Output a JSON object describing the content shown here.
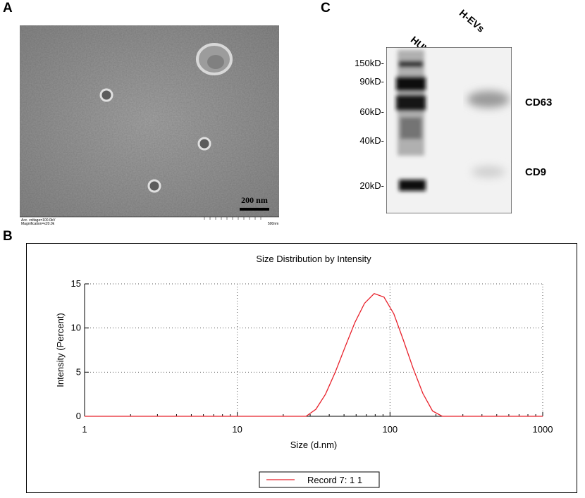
{
  "panels": {
    "a": "A",
    "b": "B",
    "c": "C"
  },
  "tem": {
    "scale_bar_label": "200 nm",
    "footer_line1": "Acc. voltage=100.0kV",
    "footer_line2": "Magnification=x20.0k",
    "footer_right": "500nm"
  },
  "western_blot": {
    "lanes": [
      "HUVECs",
      "H-EVs"
    ],
    "markers": [
      "150kD-",
      "90kD-",
      "60kD-",
      "40kD-",
      "20kD-"
    ],
    "proteins": [
      "CD63",
      "CD9"
    ]
  },
  "chart_data": {
    "type": "line",
    "title": "Size Distribution by Intensity",
    "xlabel": "Size (d.nm)",
    "ylabel": "Intensity (Percent)",
    "xscale": "log",
    "xlim": [
      1,
      1000
    ],
    "ylim": [
      0,
      15
    ],
    "xticks": [
      "1",
      "10",
      "100",
      "1000"
    ],
    "yticks": [
      "0",
      "5",
      "10",
      "15"
    ],
    "grid": true,
    "legend_position": "bottom-center",
    "series": [
      {
        "name": "Record 7: 1 1",
        "color": "#e8202a",
        "x": [
          1,
          28.2,
          32.7,
          37.8,
          43.8,
          50.7,
          58.8,
          68.1,
          78.8,
          91.3,
          106,
          122,
          142,
          164,
          190,
          220,
          1000
        ],
        "y": [
          0,
          0,
          0.8,
          2.5,
          5.0,
          7.8,
          10.6,
          12.8,
          13.9,
          13.5,
          11.6,
          8.7,
          5.4,
          2.6,
          0.6,
          0,
          0
        ]
      }
    ]
  }
}
